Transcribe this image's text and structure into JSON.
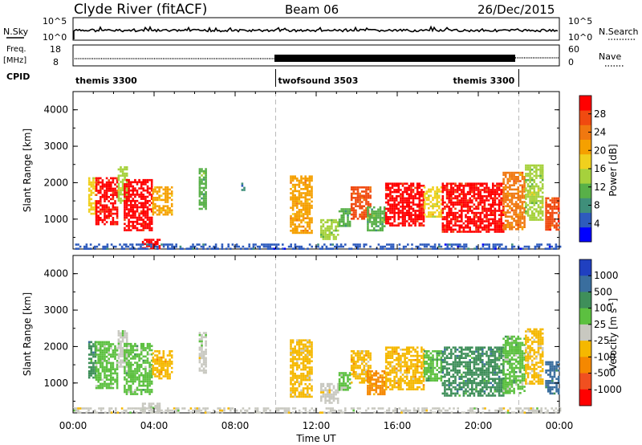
{
  "header": {
    "station": "Clyde River (fitACF)",
    "beam": "Beam 06",
    "date": "26/Dec/2015"
  },
  "summary": {
    "nsky_label": "N.Sky",
    "nsearch_label": "N.Search",
    "nsky_ticks": [
      "10^5",
      "10^0"
    ],
    "freq_label_1": "Freq.",
    "freq_label_2": "[MHz]",
    "freq_ticks": [
      "18",
      "8"
    ],
    "nave_label": "Nave",
    "nave_ticks": [
      "60",
      "0"
    ],
    "cpid_label": "CPID",
    "cpid_segments": [
      {
        "name": "themis 3300",
        "start_h": 0,
        "end_h": 10
      },
      {
        "name": "twofsound 3503",
        "start_h": 10,
        "end_h": 22
      },
      {
        "name": "themis 3300",
        "start_h": 22,
        "end_h": 24
      }
    ]
  },
  "chart_data": [
    {
      "type": "heatmap",
      "parameter": "Power",
      "ylabel": "Slant Range [km]",
      "xlabel": "",
      "xlim": [
        0,
        24
      ],
      "ylim": [
        180,
        4500
      ],
      "yticks": [
        "1000",
        "2000",
        "3000",
        "4000"
      ],
      "colorbar_label": "Power [dB]",
      "colorbar_ticks": [
        "4",
        "8",
        "12",
        "16",
        "20",
        "24",
        "28"
      ],
      "colorbar_colors": [
        "#0000ff",
        "#2e5bbd",
        "#3f8f7a",
        "#58b048",
        "#a6d13c",
        "#f0d01e",
        "#f5a000",
        "#f07810",
        "#f04a10",
        "#ff0000"
      ],
      "colorbar_range": [
        0,
        30
      ],
      "echo_regions": [
        {
          "t0": 0.75,
          "t1": 1.1,
          "r0": 1150,
          "r1": 2150,
          "v": 16
        },
        {
          "t0": 1.1,
          "t1": 2.2,
          "r0": 850,
          "r1": 2150,
          "v": 27
        },
        {
          "t0": 2.2,
          "t1": 2.7,
          "r0": 1450,
          "r1": 2450,
          "v": 14
        },
        {
          "t0": 2.5,
          "t1": 3.9,
          "r0": 700,
          "r1": 2100,
          "v": 29
        },
        {
          "t0": 3.9,
          "t1": 4.9,
          "r0": 1150,
          "r1": 1900,
          "v": 18
        },
        {
          "t0": 3.4,
          "t1": 4.3,
          "r0": 200,
          "r1": 460,
          "v": 30
        },
        {
          "t0": 6.2,
          "t1": 6.6,
          "r0": 1300,
          "r1": 2400,
          "v": 10
        },
        {
          "t0": 8.3,
          "t1": 8.5,
          "r0": 1800,
          "r1": 2000,
          "v": 6
        },
        {
          "t0": 10.7,
          "t1": 11.8,
          "r0": 600,
          "r1": 2200,
          "v": 20
        },
        {
          "t0": 12.2,
          "t1": 13.1,
          "r0": 450,
          "r1": 1000,
          "v": 12
        },
        {
          "t0": 13.1,
          "t1": 13.7,
          "r0": 800,
          "r1": 1300,
          "v": 9
        },
        {
          "t0": 13.7,
          "t1": 14.7,
          "r0": 1000,
          "r1": 1900,
          "v": 24
        },
        {
          "t0": 14.5,
          "t1": 15.4,
          "r0": 700,
          "r1": 1350,
          "v": 10
        },
        {
          "t0": 15.4,
          "t1": 17.3,
          "r0": 850,
          "r1": 2000,
          "v": 28
        },
        {
          "t0": 17.3,
          "t1": 18.2,
          "r0": 1050,
          "r1": 1900,
          "v": 16
        },
        {
          "t0": 18.2,
          "t1": 21.2,
          "r0": 650,
          "r1": 2000,
          "v": 27
        },
        {
          "t0": 21.2,
          "t1": 22.3,
          "r0": 700,
          "r1": 2300,
          "v": 22
        },
        {
          "t0": 22.3,
          "t1": 23.2,
          "r0": 1000,
          "r1": 2500,
          "v": 13
        },
        {
          "t0": 23.3,
          "t1": 24,
          "r0": 700,
          "r1": 1600,
          "v": 26
        },
        {
          "t0": 0,
          "t1": 24,
          "r0": 180,
          "r1": 330,
          "v": 5
        }
      ]
    },
    {
      "type": "heatmap",
      "parameter": "Velocity",
      "ylabel": "Slant Range [km]",
      "xlabel": "Time UT",
      "xlim": [
        0,
        24
      ],
      "ylim": [
        180,
        4500
      ],
      "xticks": [
        "00:00",
        "04:00",
        "08:00",
        "12:00",
        "16:00",
        "20:00",
        "00:00"
      ],
      "yticks": [
        "1000",
        "2000",
        "3000",
        "4000"
      ],
      "colorbar_label": "Velocity [m s^-1]",
      "colorbar_ticks": [
        "1000",
        "500",
        "100",
        "25",
        "-25",
        "-100",
        "-500",
        "-1000"
      ],
      "colorbar_colors": [
        "#2040c0",
        "#3a6e9e",
        "#3f8f5a",
        "#5cc040",
        "#c8c8c0",
        "#f5b800",
        "#f58800",
        "#f05020",
        "#ff0000"
      ],
      "colorbar_range": [
        -1000,
        1000
      ],
      "echo_regions": [
        {
          "t0": 0.75,
          "t1": 1.1,
          "r0": 1150,
          "r1": 2150,
          "v": 400
        },
        {
          "t0": 1.1,
          "t1": 2.2,
          "r0": 850,
          "r1": 2150,
          "v": 150
        },
        {
          "t0": 2.2,
          "t1": 2.7,
          "r0": 1450,
          "r1": 2450,
          "v": 60
        },
        {
          "t0": 2.5,
          "t1": 3.9,
          "r0": 700,
          "r1": 2100,
          "v": 200
        },
        {
          "t0": 3.9,
          "t1": 4.9,
          "r0": 1150,
          "r1": 1900,
          "v": -300
        },
        {
          "t0": 3.4,
          "t1": 4.3,
          "r0": 200,
          "r1": 460,
          "v": 50
        },
        {
          "t0": 6.2,
          "t1": 6.6,
          "r0": 1300,
          "r1": 2400,
          "v": 30
        },
        {
          "t0": 10.7,
          "t1": 11.8,
          "r0": 600,
          "r1": 2200,
          "v": -150
        },
        {
          "t0": 12.2,
          "t1": 13.1,
          "r0": 450,
          "r1": 1000,
          "v": -40
        },
        {
          "t0": 13.1,
          "t1": 13.7,
          "r0": 800,
          "r1": 1300,
          "v": 120
        },
        {
          "t0": 13.7,
          "t1": 14.7,
          "r0": 1000,
          "r1": 1900,
          "v": -200
        },
        {
          "t0": 14.5,
          "t1": 15.4,
          "r0": 700,
          "r1": 1350,
          "v": -350
        },
        {
          "t0": 15.4,
          "t1": 17.3,
          "r0": 850,
          "r1": 2000,
          "v": -250
        },
        {
          "t0": 17.3,
          "t1": 18.2,
          "r0": 1050,
          "r1": 1900,
          "v": 300
        },
        {
          "t0": 18.2,
          "t1": 21.2,
          "r0": 650,
          "r1": 2000,
          "v": 450
        },
        {
          "t0": 21.2,
          "t1": 22.3,
          "r0": 700,
          "r1": 2300,
          "v": 200
        },
        {
          "t0": 22.3,
          "t1": 23.2,
          "r0": 1000,
          "r1": 2500,
          "v": -120
        },
        {
          "t0": 23.3,
          "t1": 24,
          "r0": 700,
          "r1": 1600,
          "v": 600
        },
        {
          "t0": 0,
          "t1": 24,
          "r0": 180,
          "r1": 330,
          "v": -20
        }
      ]
    }
  ]
}
